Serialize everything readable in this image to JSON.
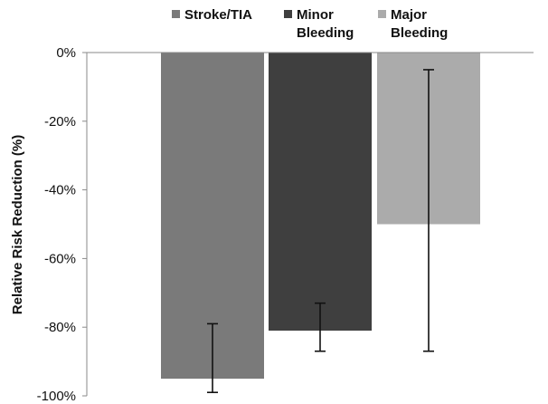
{
  "chart_data": {
    "type": "bar",
    "title": "",
    "xlabel": "",
    "ylabel": "Relative Risk Reduction (%)",
    "ylim": [
      -100,
      0
    ],
    "yticks": [
      0,
      -20,
      -40,
      -60,
      -80,
      -100
    ],
    "ytick_labels": [
      "0%",
      "-20%",
      "-40%",
      "-60%",
      "-80%",
      "-100%"
    ],
    "grid": false,
    "legend": "top",
    "series": [
      {
        "name": "Stroke/TIA",
        "value": -95,
        "error_low": -99,
        "error_high": -79,
        "color": "#7a7a7a"
      },
      {
        "name": "Minor Bleeding",
        "value": -81,
        "error_low": -87,
        "error_high": -73,
        "color": "#3f3f3f"
      },
      {
        "name": "Major Bleeding",
        "value": -50,
        "error_low": -87,
        "error_high": -5,
        "color": "#ababab"
      }
    ]
  }
}
